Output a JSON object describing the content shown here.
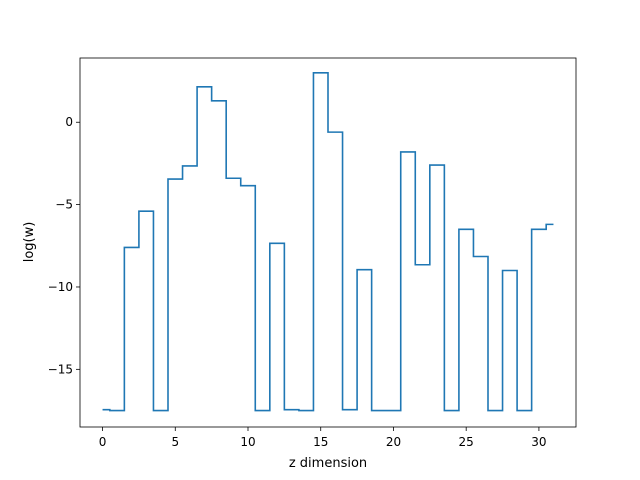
{
  "chart_data": {
    "type": "line",
    "drawstyle": "steps-mid",
    "xlabel": "z dimension",
    "ylabel": "log(w)",
    "xlim": [
      -1.55,
      32.55
    ],
    "ylim": [
      -18.5,
      3.9
    ],
    "xticks": [
      0,
      5,
      10,
      15,
      20,
      25,
      30
    ],
    "yticks": [
      -15,
      -10,
      -5,
      0
    ],
    "grid": false,
    "series": [
      {
        "color": "#1f77b4",
        "x": [
          0,
          1,
          2,
          3,
          4,
          5,
          6,
          7,
          8,
          9,
          10,
          11,
          12,
          13,
          14,
          15,
          16,
          17,
          18,
          19,
          20,
          21,
          22,
          23,
          24,
          25,
          26,
          27,
          28,
          29,
          30,
          31
        ],
        "y": [
          -17.45,
          -17.5,
          -7.6,
          -5.4,
          -17.5,
          -3.45,
          -2.65,
          2.15,
          1.3,
          -3.4,
          -3.85,
          -17.5,
          -7.35,
          -17.45,
          -17.5,
          3.0,
          -0.6,
          -17.45,
          -8.95,
          -17.5,
          -17.5,
          -1.8,
          -8.65,
          -2.6,
          -17.5,
          -6.5,
          -8.15,
          -17.5,
          -9.0,
          -17.5,
          -6.5,
          -6.2
        ]
      }
    ]
  }
}
